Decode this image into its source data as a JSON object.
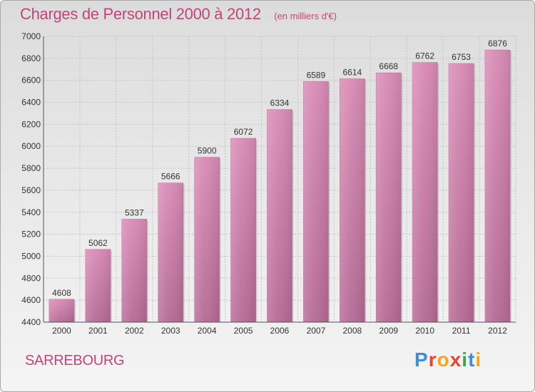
{
  "header": {
    "title": "Charges de Personnel 2000 à 2012",
    "unit": "(en milliers d'€)"
  },
  "footer": {
    "city": "SARREBOURG",
    "logo_letters": [
      "P",
      "r",
      "o",
      "x",
      "i",
      "t",
      "i"
    ],
    "logo_colors": [
      "#3d8fd6",
      "#e8462a",
      "#f2a71b",
      "#e8462a",
      "#3aa84a",
      "#3d8fd6",
      "#f2a71b"
    ]
  },
  "chart_data": {
    "type": "bar",
    "title": "Charges de Personnel 2000 à 2012",
    "subtitle": "(en milliers d'€)",
    "categories": [
      "2000",
      "2001",
      "2002",
      "2003",
      "2004",
      "2005",
      "2006",
      "2007",
      "2008",
      "2009",
      "2010",
      "2011",
      "2012"
    ],
    "values": [
      4608,
      5062,
      5337,
      5666,
      5900,
      6072,
      6334,
      6589,
      6614,
      6668,
      6762,
      6753,
      6876
    ],
    "ylim": [
      4400,
      7000
    ],
    "yticks": [
      4400,
      4600,
      4800,
      5000,
      5200,
      5400,
      5600,
      5800,
      6000,
      6200,
      6400,
      6600,
      6800,
      7000
    ],
    "grid": true,
    "bar_color": "#d98bb5",
    "bar_color_dark": "#b56a95"
  }
}
